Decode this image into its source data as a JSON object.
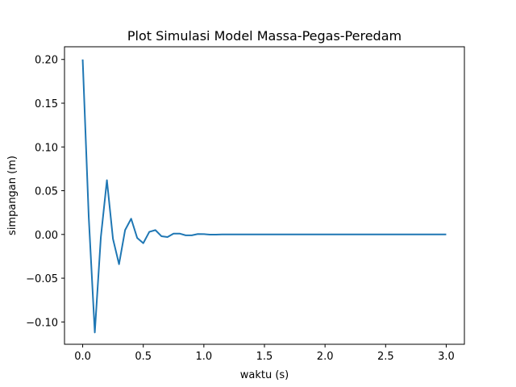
{
  "chart_data": {
    "type": "line",
    "title": "Plot Simulasi Model Massa-Pegas-Peredam",
    "xlabel": "waktu (s)",
    "ylabel": "simpangan (m)",
    "xlim": [
      -0.15,
      3.15
    ],
    "ylim": [
      -0.1255,
      0.2145
    ],
    "xticks": [
      0.0,
      0.5,
      1.0,
      1.5,
      2.0,
      2.5,
      3.0
    ],
    "xtick_labels": [
      "0.0",
      "0.5",
      "1.0",
      "1.5",
      "2.0",
      "2.5",
      "3.0"
    ],
    "yticks": [
      -0.1,
      -0.05,
      0.0,
      0.05,
      0.1,
      0.15,
      0.2
    ],
    "ytick_labels": [
      "−0.10",
      "−0.05",
      "0.00",
      "0.05",
      "0.10",
      "0.15",
      "0.20"
    ],
    "grid": false,
    "series": [
      {
        "color": "#1f77b4",
        "x": [
          0.0,
          0.05,
          0.1,
          0.15,
          0.2,
          0.25,
          0.3,
          0.35,
          0.4,
          0.45,
          0.5,
          0.55,
          0.6,
          0.65,
          0.7,
          0.75,
          0.8,
          0.85,
          0.9,
          0.95,
          1.0,
          1.05,
          1.1,
          1.15,
          1.2,
          1.25,
          1.3,
          1.35,
          1.4,
          1.5,
          1.6,
          1.8,
          2.0,
          2.5,
          3.0
        ],
        "values": [
          0.2,
          0.02,
          -0.112,
          -0.003,
          0.062,
          -0.005,
          -0.034,
          0.005,
          0.018,
          -0.004,
          -0.01,
          0.003,
          0.005,
          -0.002,
          -0.003,
          0.001,
          0.001,
          -0.001,
          -0.001,
          0.0005,
          0.0004,
          -0.0002,
          -0.0002,
          0.0001,
          0.0001,
          0.0,
          0.0,
          0.0,
          0.0,
          0.0,
          0.0,
          0.0,
          0.0,
          0.0,
          0.0
        ]
      }
    ]
  }
}
